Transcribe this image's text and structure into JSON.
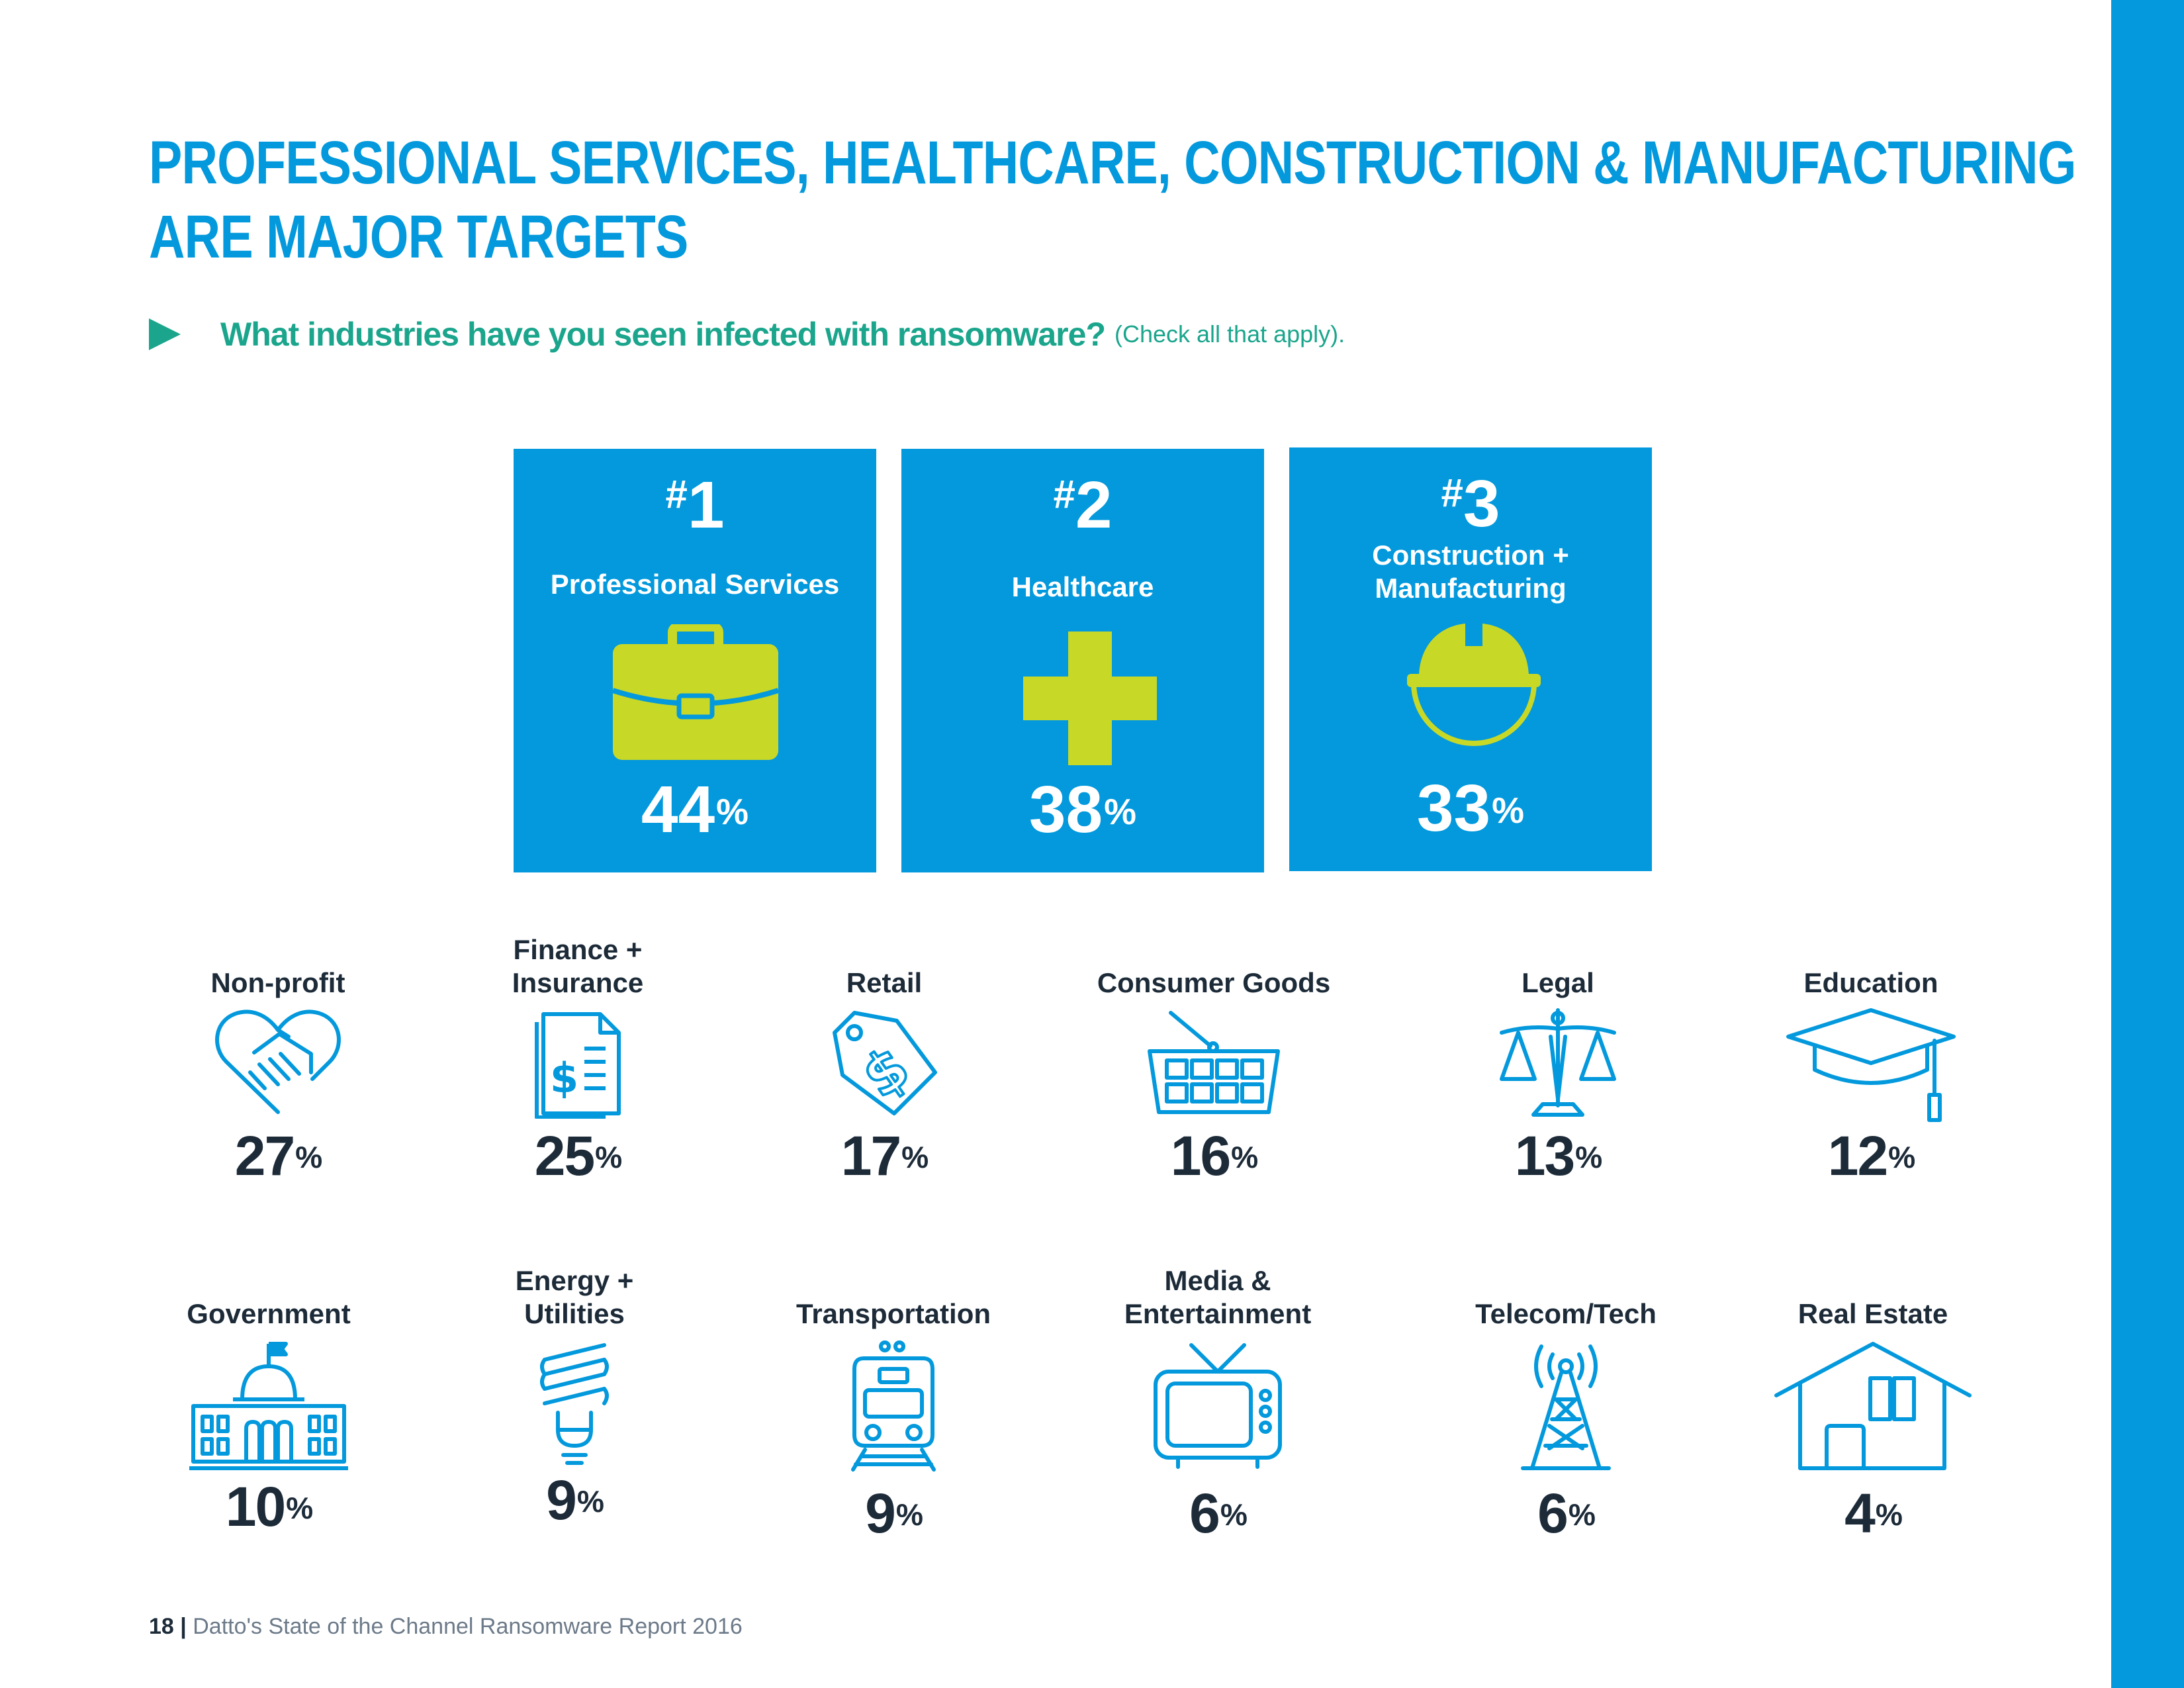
{
  "title": {
    "line1": "PROFESSIONAL SERVICES, HEALTHCARE, CONSTRUCTION & MANUFACTURING",
    "line2": "ARE MAJOR TARGETS"
  },
  "question": {
    "text": "What industries have you seen infected with ransomware?",
    "note": "(Check all that apply)."
  },
  "top": [
    {
      "rank_symbol": "#",
      "rank": "1",
      "label": "Professional Services",
      "value": "44",
      "unit": "%",
      "icon": "briefcase-icon"
    },
    {
      "rank_symbol": "#",
      "rank": "2",
      "label": "Healthcare",
      "value": "38",
      "unit": "%",
      "icon": "medical-cross-icon"
    },
    {
      "rank_symbol": "#",
      "rank": "3",
      "label_line1": "Construction +",
      "label_line2": "Manufacturing",
      "value": "33",
      "unit": "%",
      "icon": "hard-hat-icon"
    }
  ],
  "row1": [
    {
      "label": "Non-profit",
      "value": "27",
      "unit": "%",
      "icon": "handshake-heart-icon"
    },
    {
      "label_line1": "Finance +",
      "label_line2": "Insurance",
      "value": "25",
      "unit": "%",
      "icon": "financial-document-icon"
    },
    {
      "label": "Retail",
      "value": "17",
      "unit": "%",
      "icon": "price-tag-icon"
    },
    {
      "label": "Consumer Goods",
      "value": "16",
      "unit": "%",
      "icon": "shopping-basket-icon"
    },
    {
      "label": "Legal",
      "value": "13",
      "unit": "%",
      "icon": "scales-icon"
    },
    {
      "label": "Education",
      "value": "12",
      "unit": "%",
      "icon": "graduation-cap-icon"
    }
  ],
  "row2": [
    {
      "label": "Government",
      "value": "10",
      "unit": "%",
      "icon": "capitol-building-icon"
    },
    {
      "label_line1": "Energy +",
      "label_line2": "Utilities",
      "value": "9",
      "unit": "%",
      "icon": "light-bulb-icon"
    },
    {
      "label": "Transportation",
      "value": "9",
      "unit": "%",
      "icon": "train-icon"
    },
    {
      "label_line1": "Media &",
      "label_line2": "Entertainment",
      "value": "6",
      "unit": "%",
      "icon": "television-icon"
    },
    {
      "label": "Telecom/Tech",
      "value": "6",
      "unit": "%",
      "icon": "radio-tower-icon"
    },
    {
      "label": "Real Estate",
      "value": "4",
      "unit": "%",
      "icon": "house-icon"
    }
  ],
  "footer": {
    "page": "18",
    "separator": "|",
    "text": "Datto's State of the Channel Ransomware Report 2016"
  },
  "colors": {
    "brand_blue": "#0399dc",
    "teal": "#1aa58c",
    "lime": "#c8d827",
    "dark": "#1d2b39"
  }
}
